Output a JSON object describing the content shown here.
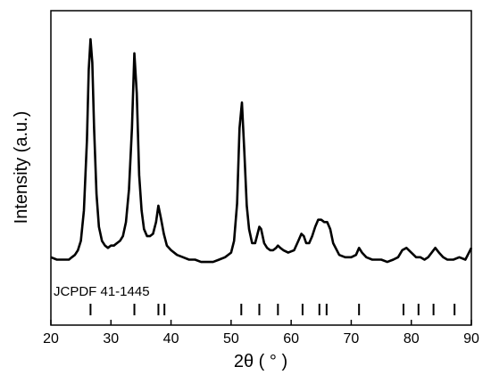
{
  "chart_data": {
    "type": "line",
    "title": "",
    "xlabel": "2θ ( ° )",
    "ylabel": "Intensity (a.u.)",
    "xlim": [
      20,
      90
    ],
    "x_ticks": [
      20,
      30,
      40,
      50,
      60,
      70,
      80,
      90
    ],
    "y_ticks_shown": false,
    "grid": false,
    "legend": "none",
    "series": [
      {
        "x": [
          20,
          21,
          22,
          23,
          23.5,
          24,
          24.5,
          25,
          25.5,
          26,
          26.3,
          26.6,
          26.9,
          27.2,
          27.6,
          28.0,
          28.5,
          29,
          29.5,
          30,
          30.5,
          31,
          31.5,
          32,
          32.5,
          33,
          33.5,
          33.9,
          34.3,
          34.7,
          35.1,
          35.5,
          36,
          36.5,
          37,
          37.5,
          37.9,
          38.3,
          38.8,
          39.3,
          40,
          41,
          42,
          43,
          44,
          45,
          46,
          47,
          48,
          49,
          50,
          50.5,
          51,
          51.4,
          51.8,
          52.2,
          52.6,
          53,
          53.5,
          54,
          54.4,
          54.7,
          55,
          55.5,
          56,
          56.5,
          57,
          57.5,
          57.8,
          58.2,
          58.7,
          59.5,
          60.5,
          61.2,
          61.7,
          62.1,
          62.5,
          63,
          63.5,
          64,
          64.5,
          65,
          65.5,
          66,
          66.5,
          67,
          68,
          69,
          70,
          70.8,
          71.3,
          71.8,
          72.5,
          73.5,
          75,
          76,
          77,
          77.8,
          78.5,
          79.2,
          80,
          80.8,
          81.5,
          82.2,
          82.8,
          83.4,
          84,
          84.6,
          85.3,
          86,
          87,
          88,
          89,
          90
        ],
        "y": [
          5,
          4,
          4,
          4,
          5,
          6,
          8,
          12,
          25,
          55,
          85,
          98,
          88,
          60,
          32,
          18,
          12,
          10,
          9,
          10,
          10,
          11,
          12,
          14,
          20,
          34,
          60,
          92,
          75,
          40,
          25,
          17,
          14,
          14,
          15,
          20,
          27,
          22,
          15,
          10,
          8,
          6,
          5,
          4,
          4,
          3,
          3,
          3,
          4,
          5,
          7,
          12,
          28,
          60,
          71,
          50,
          27,
          17,
          11,
          11,
          15,
          18,
          17,
          11,
          9,
          8,
          8,
          9,
          10,
          9,
          8,
          7,
          8,
          12,
          15,
          14,
          11,
          11,
          14,
          18,
          21,
          21,
          20,
          20,
          17,
          11,
          6,
          5,
          5,
          6,
          9,
          7,
          5,
          4,
          4,
          3,
          4,
          5,
          8,
          9,
          7,
          5,
          5,
          4,
          5,
          7,
          9,
          7,
          5,
          4,
          4,
          5,
          4,
          9
        ]
      }
    ],
    "reference": {
      "label": "JCPDF 41-1445",
      "positions": [
        26.6,
        33.9,
        37.9,
        38.9,
        51.7,
        54.7,
        57.8,
        61.9,
        64.7,
        65.9,
        71.3,
        78.7,
        81.2,
        83.7,
        87.2
      ]
    }
  }
}
